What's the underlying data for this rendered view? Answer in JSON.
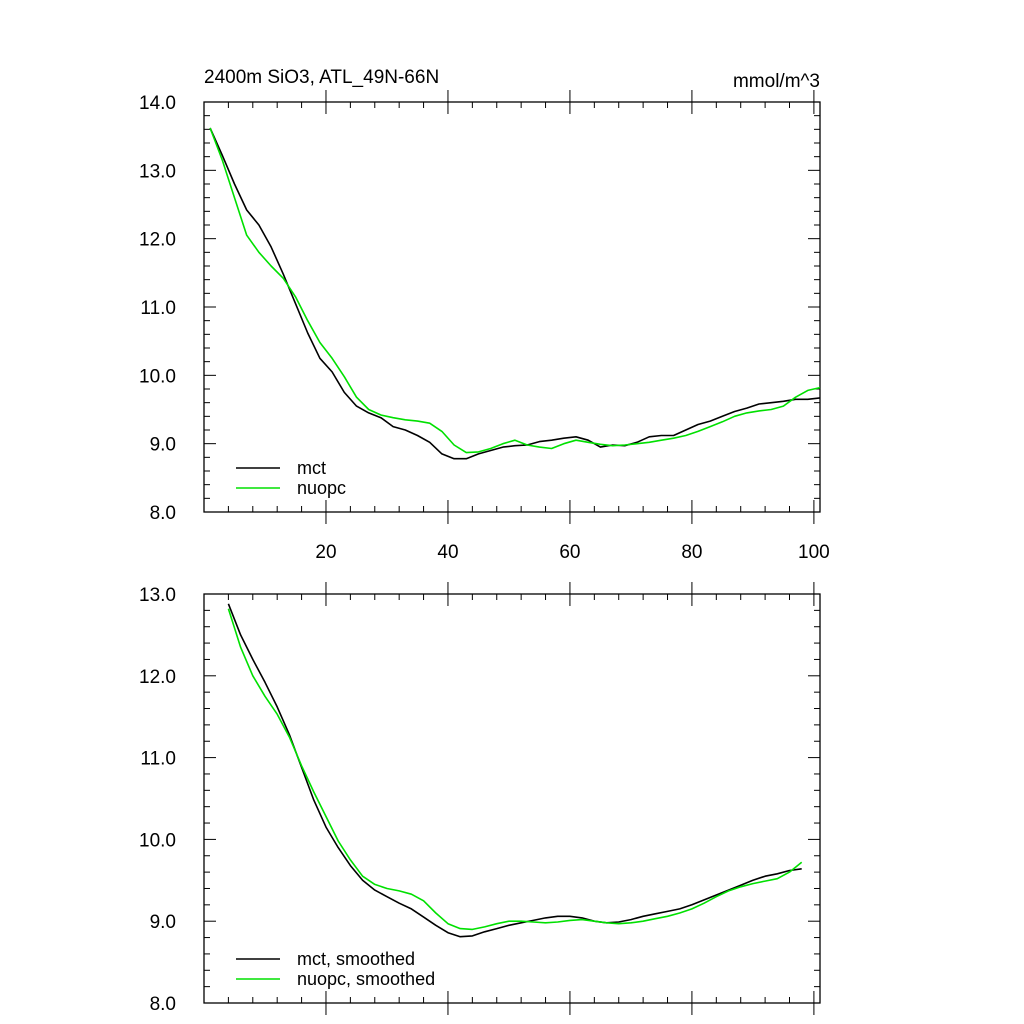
{
  "chart_data": [
    {
      "type": "line",
      "title": "2400m SiO3, ATL_49N-66N",
      "units": "mmol/m^3",
      "xlim": [
        0,
        101
      ],
      "ylim": [
        8.0,
        14.0
      ],
      "y_tick_labels": [
        "8.0",
        "9.0",
        "10.0",
        "11.0",
        "12.0",
        "13.0",
        "14.0"
      ],
      "y_tick_values": [
        8,
        9,
        10,
        11,
        12,
        13,
        14
      ],
      "x_tick_labels": [
        "20",
        "40",
        "60",
        "80",
        "100"
      ],
      "x_tick_values": [
        20,
        40,
        60,
        80,
        100
      ],
      "legend_position": "bottom-left",
      "series": [
        {
          "name": "mct",
          "color": "#000000",
          "x": [
            1,
            3,
            5,
            7,
            9,
            11,
            13,
            15,
            17,
            19,
            21,
            23,
            25,
            27,
            29,
            31,
            33,
            35,
            37,
            39,
            41,
            43,
            45,
            47,
            49,
            51,
            53,
            55,
            57,
            59,
            61,
            63,
            65,
            67,
            69,
            71,
            73,
            75,
            77,
            79,
            81,
            83,
            85,
            87,
            89,
            91,
            93,
            95,
            97,
            99,
            101
          ],
          "y": [
            13.62,
            13.22,
            12.8,
            12.42,
            12.2,
            11.88,
            11.48,
            11.05,
            10.62,
            10.25,
            10.05,
            9.75,
            9.55,
            9.45,
            9.38,
            9.25,
            9.2,
            9.12,
            9.02,
            8.85,
            8.78,
            8.78,
            8.85,
            8.9,
            8.95,
            8.97,
            8.98,
            9.03,
            9.05,
            9.08,
            9.1,
            9.05,
            8.95,
            8.98,
            8.97,
            9.02,
            9.1,
            9.12,
            9.12,
            9.2,
            9.28,
            9.33,
            9.4,
            9.47,
            9.52,
            9.58,
            9.6,
            9.62,
            9.65,
            9.65,
            9.67
          ]
        },
        {
          "name": "nuopc",
          "color": "#00e000",
          "x": [
            1,
            3,
            5,
            7,
            9,
            11,
            13,
            15,
            17,
            19,
            21,
            23,
            25,
            27,
            29,
            31,
            33,
            35,
            37,
            39,
            41,
            43,
            45,
            47,
            49,
            51,
            53,
            55,
            57,
            59,
            61,
            63,
            65,
            67,
            69,
            71,
            73,
            75,
            77,
            79,
            81,
            83,
            85,
            87,
            89,
            91,
            93,
            95,
            97,
            99,
            101
          ],
          "y": [
            13.62,
            13.15,
            12.6,
            12.05,
            11.8,
            11.6,
            11.42,
            11.15,
            10.8,
            10.48,
            10.25,
            9.98,
            9.68,
            9.5,
            9.42,
            9.38,
            9.35,
            9.33,
            9.3,
            9.18,
            8.98,
            8.87,
            8.88,
            8.93,
            9.0,
            9.05,
            8.98,
            8.95,
            8.93,
            9.0,
            9.05,
            9.02,
            8.99,
            8.97,
            8.98,
            9.0,
            9.02,
            9.05,
            9.08,
            9.12,
            9.18,
            9.25,
            9.32,
            9.4,
            9.45,
            9.48,
            9.5,
            9.55,
            9.68,
            9.78,
            9.82
          ]
        }
      ]
    },
    {
      "type": "line",
      "title": "",
      "xlim": [
        0,
        101
      ],
      "ylim": [
        8.0,
        13.0
      ],
      "y_tick_labels": [
        "8.0",
        "9.0",
        "10.0",
        "11.0",
        "12.0",
        "13.0"
      ],
      "y_tick_values": [
        8,
        9,
        10,
        11,
        12,
        13
      ],
      "x_tick_values": [
        20,
        40,
        60,
        80,
        100
      ],
      "legend_position": "bottom-left",
      "series": [
        {
          "name": "mct, smoothed",
          "color": "#000000",
          "x": [
            4,
            6,
            8,
            10,
            12,
            14,
            16,
            18,
            20,
            22,
            24,
            26,
            28,
            30,
            32,
            34,
            36,
            38,
            40,
            42,
            44,
            46,
            48,
            50,
            52,
            54,
            56,
            58,
            60,
            62,
            64,
            66,
            68,
            70,
            72,
            74,
            76,
            78,
            80,
            82,
            84,
            86,
            88,
            90,
            92,
            94,
            96,
            98
          ],
          "y": [
            12.88,
            12.5,
            12.2,
            11.92,
            11.62,
            11.28,
            10.88,
            10.48,
            10.15,
            9.9,
            9.68,
            9.5,
            9.38,
            9.3,
            9.22,
            9.15,
            9.05,
            8.95,
            8.86,
            8.81,
            8.82,
            8.87,
            8.91,
            8.95,
            8.98,
            9.01,
            9.04,
            9.06,
            9.06,
            9.04,
            9.0,
            8.98,
            8.99,
            9.02,
            9.06,
            9.09,
            9.12,
            9.15,
            9.2,
            9.26,
            9.32,
            9.38,
            9.44,
            9.5,
            9.55,
            9.58,
            9.62,
            9.64
          ]
        },
        {
          "name": "nuopc, smoothed",
          "color": "#00e000",
          "x": [
            4,
            6,
            8,
            10,
            12,
            14,
            16,
            18,
            20,
            22,
            24,
            26,
            28,
            30,
            32,
            34,
            36,
            38,
            40,
            42,
            44,
            46,
            48,
            50,
            52,
            54,
            56,
            58,
            60,
            62,
            64,
            66,
            68,
            70,
            72,
            74,
            76,
            78,
            80,
            82,
            84,
            86,
            88,
            90,
            92,
            94,
            96,
            98
          ],
          "y": [
            12.82,
            12.35,
            12.0,
            11.75,
            11.53,
            11.25,
            10.9,
            10.58,
            10.28,
            9.98,
            9.75,
            9.55,
            9.45,
            9.4,
            9.37,
            9.33,
            9.25,
            9.1,
            8.97,
            8.91,
            8.9,
            8.93,
            8.97,
            9.0,
            9.0,
            8.99,
            8.98,
            8.99,
            9.01,
            9.02,
            9.0,
            8.98,
            8.97,
            8.98,
            9.0,
            9.03,
            9.06,
            9.1,
            9.15,
            9.22,
            9.3,
            9.37,
            9.42,
            9.46,
            9.49,
            9.52,
            9.6,
            9.72
          ]
        }
      ]
    }
  ]
}
